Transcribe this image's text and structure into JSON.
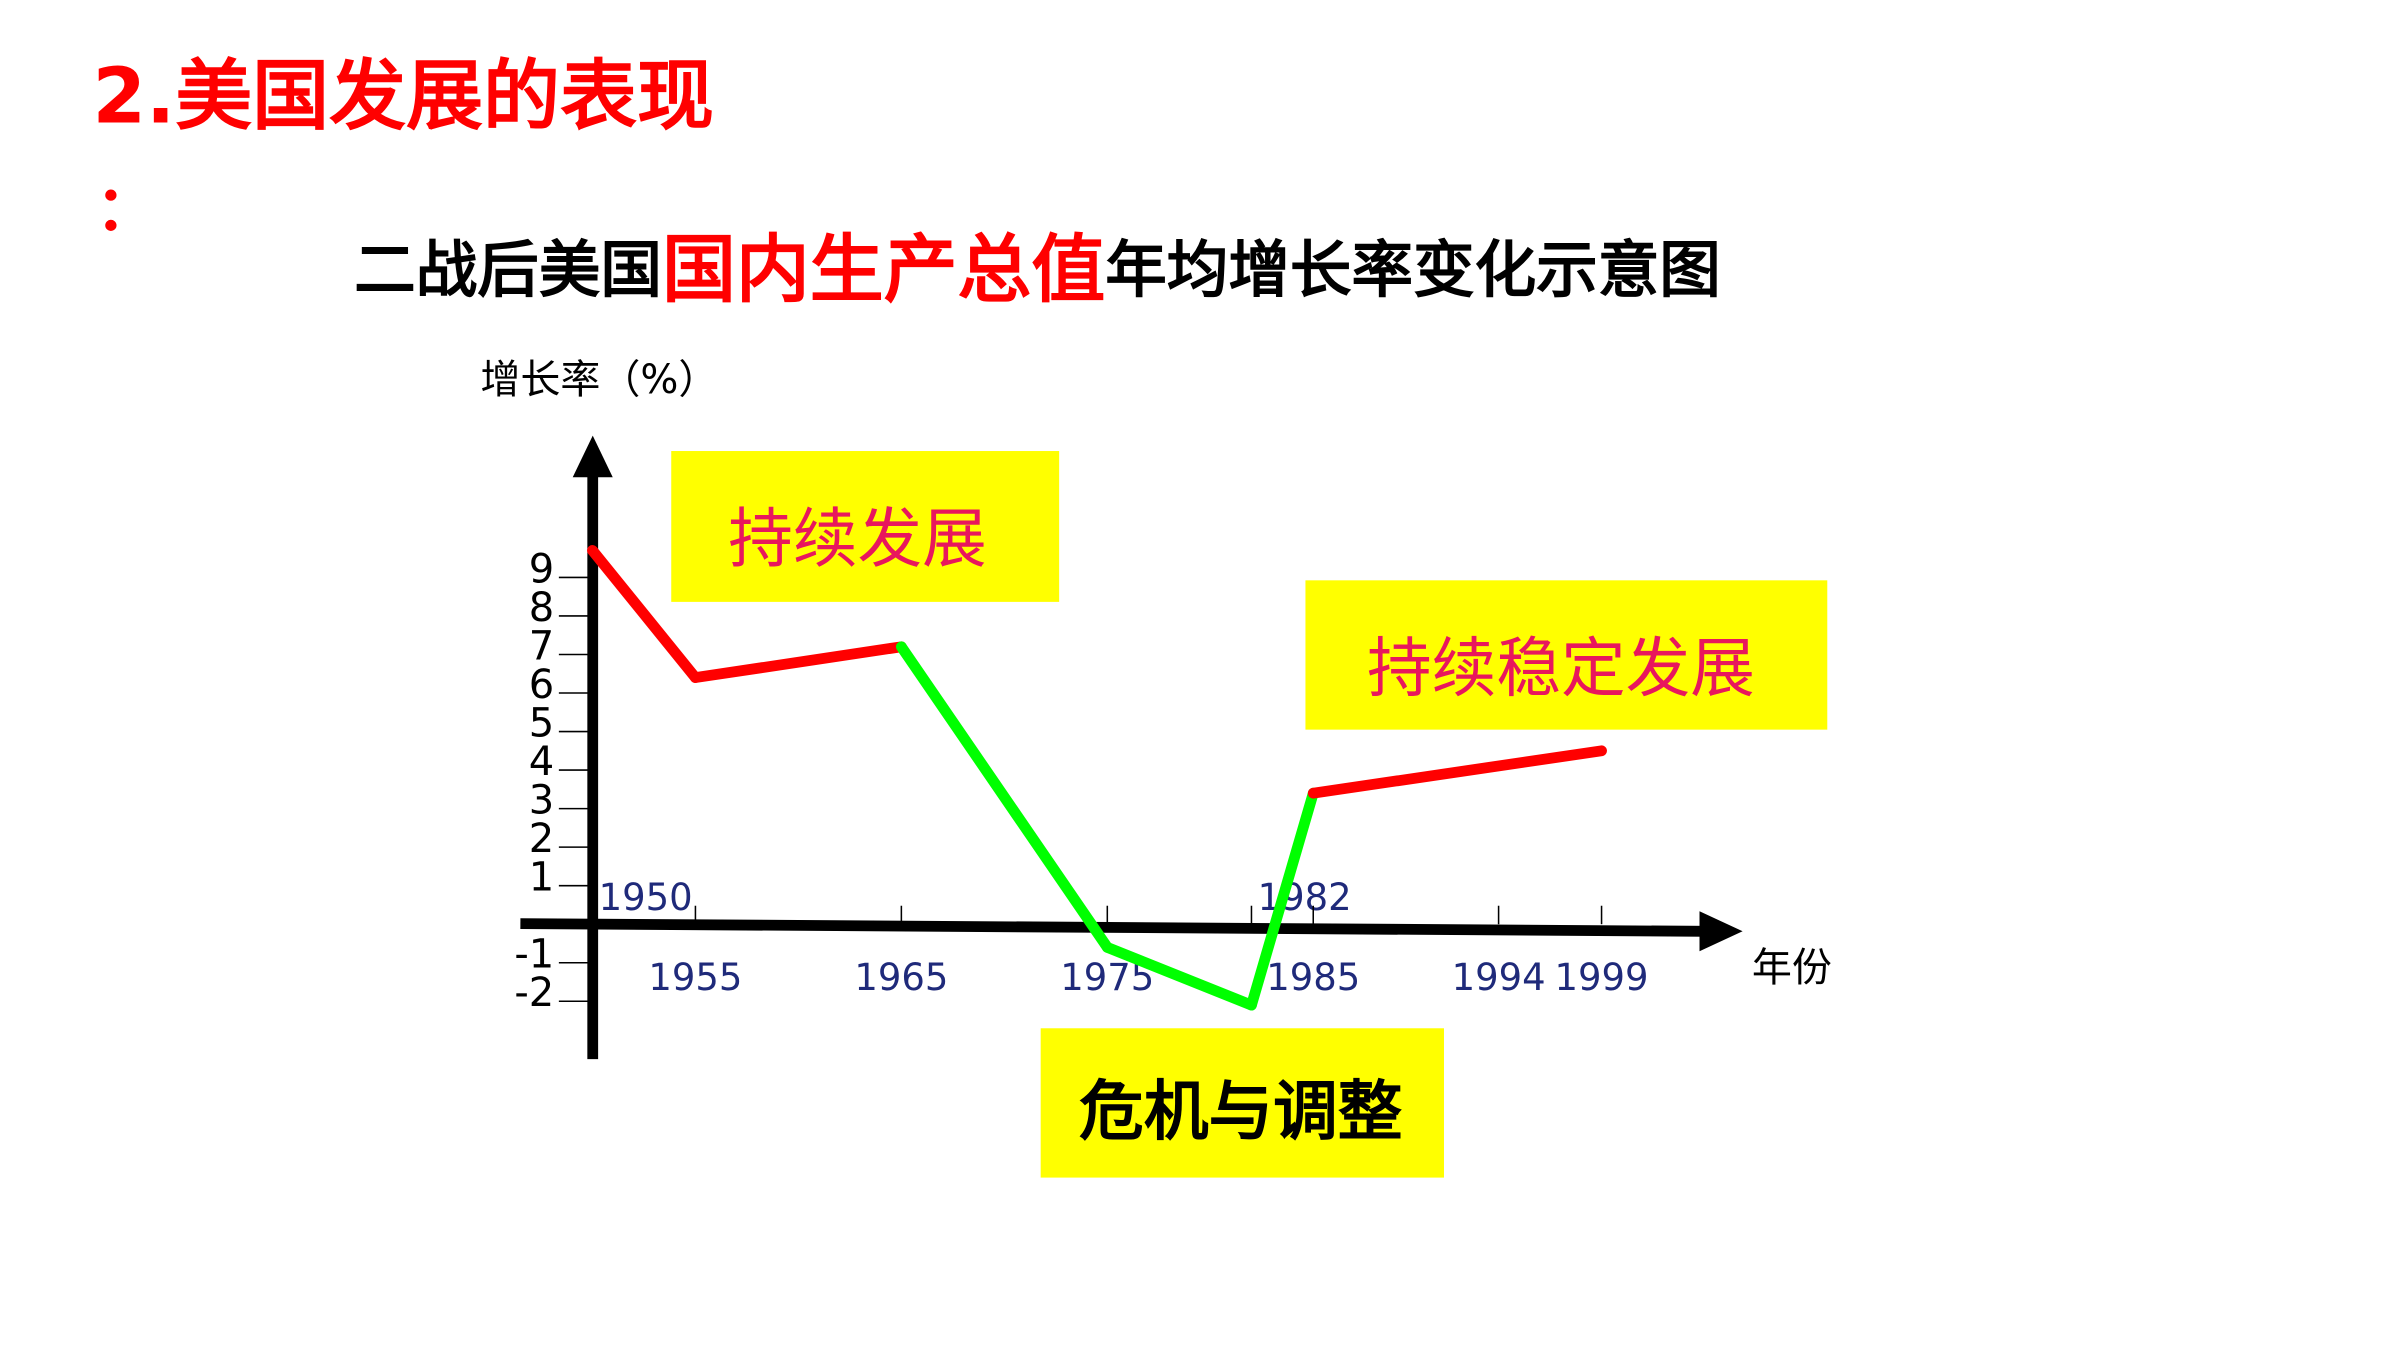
{
  "title": "2.美国发展的表现",
  "title_colon": "：",
  "chart_data": {
    "type": "line",
    "title_parts": [
      "二战后美国",
      "国内生产总值",
      "年均增长率变化示意图"
    ],
    "y_label": "增长率（%）",
    "x_label": "年份",
    "x": [
      1950,
      1955,
      1965,
      1975,
      1982,
      1985,
      1999
    ],
    "values": [
      9.7,
      6.4,
      7.2,
      -0.6,
      -2.1,
      3.4,
      4.5
    ],
    "segment_colors": [
      "#ff0000",
      "#ff0000",
      "#00ff00",
      "#00ff00",
      "#00ff00",
      "#ff0000"
    ],
    "xlim": [
      1946.5,
      2005.7
    ],
    "ylim": [
      -3.5,
      12.6
    ],
    "xticks": [
      1950,
      1955,
      1965,
      1975,
      1982,
      1985,
      1994,
      1999
    ],
    "yticks": [
      9,
      8,
      7,
      6,
      5,
      4,
      3,
      2,
      1,
      -1,
      -2
    ],
    "annotations": [
      "持续发展",
      "持续稳定发展",
      "危机与调整"
    ]
  }
}
